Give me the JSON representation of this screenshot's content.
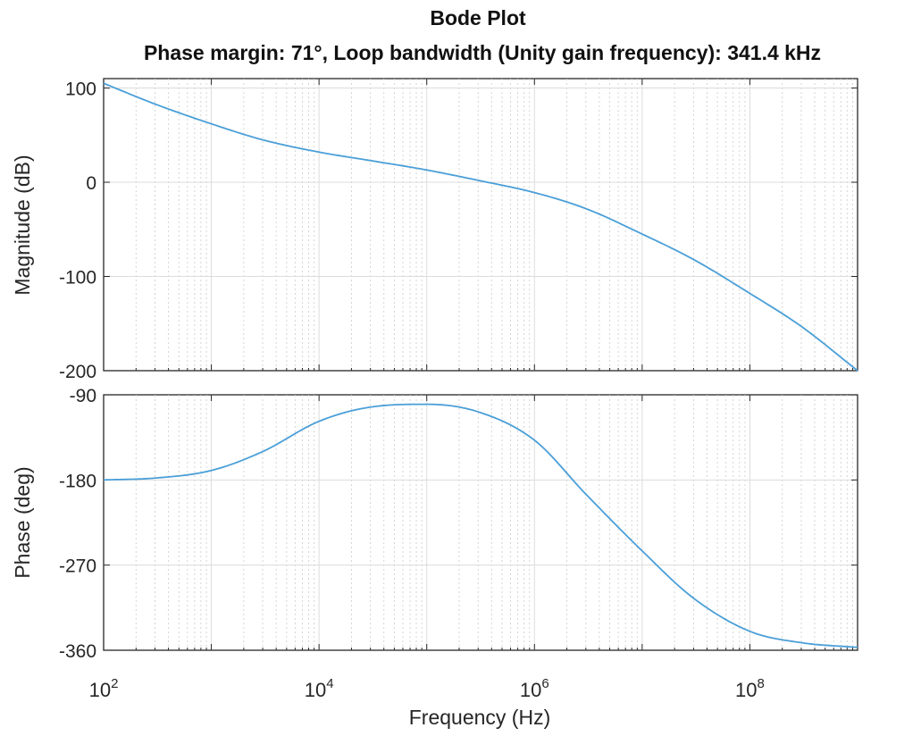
{
  "chart_data": {
    "title": "Bode Plot",
    "subtitle": "Phase margin: 71°, Loop bandwidth (Unity gain frequency): 341.4 kHz",
    "xlabel": "Frequency  (Hz)",
    "x_scale": "log",
    "xlim": [
      100,
      1000000000
    ],
    "x_ticks": [
      {
        "base": "10",
        "exp": "2",
        "value": 100
      },
      {
        "base": "10",
        "exp": "4",
        "value": 10000
      },
      {
        "base": "10",
        "exp": "6",
        "value": 1000000
      },
      {
        "base": "10",
        "exp": "8",
        "value": 100000000
      }
    ],
    "grid": true,
    "line_color": "#4a9fd8",
    "panels": [
      {
        "id": "magnitude",
        "type": "line",
        "ylabel": "Magnitude (dB)",
        "ylim": [
          -200,
          110
        ],
        "y_ticks": [
          100,
          0,
          -100,
          -200
        ],
        "y_tick_labels": [
          "100",
          "0",
          "-100",
          "-200"
        ],
        "series": [
          {
            "x": [
              100,
              300,
              1000,
              3000,
              10000,
              30000,
              100000,
              300000,
              1000000,
              3000000,
              10000000,
              30000000,
              100000000,
              300000000,
              1000000000
            ],
            "values": [
              105,
              83,
              62,
              45,
              32,
              23,
              13,
              2,
              -11,
              -28,
              -55,
              -82,
              -118,
              -153,
              -200
            ]
          }
        ]
      },
      {
        "id": "phase",
        "type": "line",
        "ylabel": "Phase (deg)",
        "ylim": [
          -360,
          -90
        ],
        "y_ticks": [
          -90,
          -180,
          -270,
          -360
        ],
        "y_tick_labels": [
          "-90",
          "-180",
          "-270",
          "-360"
        ],
        "series": [
          {
            "x": [
              100,
              300,
              1000,
              3000,
              10000,
              30000,
              100000,
              300000,
              1000000,
              3000000,
              10000000,
              30000000,
              100000000,
              300000000,
              1000000000
            ],
            "values": [
              -180,
              -178,
              -170,
              -150,
              -118,
              -103,
              -100,
              -108,
              -138,
              -195,
              -255,
              -305,
              -340,
              -352,
              -357
            ]
          }
        ]
      }
    ]
  }
}
